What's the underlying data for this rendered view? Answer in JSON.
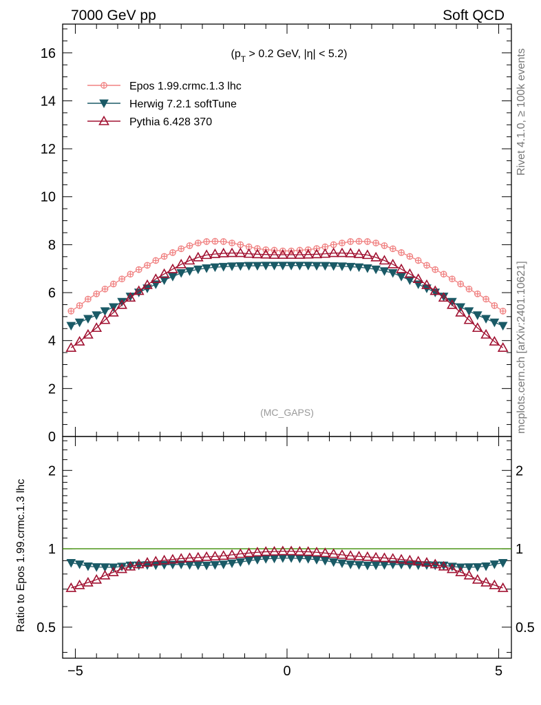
{
  "header": {
    "left_title": "7000 GeV pp",
    "right_title": "Soft QCD"
  },
  "side_labels": {
    "rivet": "Rivet 4.1.0, ≥ 100k events",
    "mcplots": "mcplots.cern.ch [arXiv:2401.10621]"
  },
  "colors": {
    "epos": "#f08080",
    "herwig": "#1a5a66",
    "pythia": "#a01030",
    "reference_line": "#3a8a00"
  },
  "chart_data": [
    {
      "type": "line",
      "panel": "main",
      "annotation": "(p_T > 0.2 GeV, |η| < 5.2)",
      "annotation_parts": [
        "(p",
        "T",
        " > 0.2 GeV, |η| < 5.2)"
      ],
      "watermark": "(MC_GAPS)",
      "xlim": [
        -5.3,
        5.3
      ],
      "ylim": [
        0,
        17.2
      ],
      "yticks": [
        0,
        2,
        4,
        6,
        8,
        10,
        12,
        14,
        16
      ],
      "legend_placement": "top-left",
      "x": [
        -5.1,
        -4.9,
        -4.7,
        -4.5,
        -4.3,
        -4.1,
        -3.9,
        -3.7,
        -3.5,
        -3.3,
        -3.1,
        -2.9,
        -2.7,
        -2.5,
        -2.3,
        -2.1,
        -1.9,
        -1.7,
        -1.5,
        -1.3,
        -1.1,
        -0.9,
        -0.7,
        -0.5,
        -0.3,
        -0.1,
        0.1,
        0.3,
        0.5,
        0.7,
        0.9,
        1.1,
        1.3,
        1.5,
        1.7,
        1.9,
        2.1,
        2.3,
        2.5,
        2.7,
        2.9,
        3.1,
        3.3,
        3.5,
        3.7,
        3.9,
        4.1,
        4.3,
        4.5,
        4.7,
        4.9,
        5.1
      ],
      "series": [
        {
          "name": "Epos 1.99.crmc.1.3 lhc",
          "key": "epos",
          "marker": "plus-circle",
          "values": [
            5.23,
            5.46,
            5.73,
            5.95,
            6.15,
            6.36,
            6.57,
            6.77,
            6.96,
            7.14,
            7.34,
            7.51,
            7.67,
            7.83,
            7.96,
            8.07,
            8.13,
            8.14,
            8.13,
            8.07,
            8.0,
            7.91,
            7.84,
            7.79,
            7.77,
            7.74,
            7.74,
            7.77,
            7.79,
            7.84,
            7.91,
            8.0,
            8.07,
            8.13,
            8.14,
            8.13,
            8.07,
            7.96,
            7.83,
            7.67,
            7.51,
            7.34,
            7.14,
            6.96,
            6.77,
            6.57,
            6.36,
            6.15,
            5.95,
            5.73,
            5.46,
            5.23
          ]
        },
        {
          "name": "Herwig 7.2.1 softTune",
          "key": "herwig",
          "marker": "triangle-down-filled",
          "values": [
            4.62,
            4.76,
            4.91,
            5.06,
            5.23,
            5.4,
            5.62,
            5.84,
            6.01,
            6.18,
            6.35,
            6.52,
            6.67,
            6.82,
            6.9,
            6.97,
            7.02,
            7.06,
            7.08,
            7.1,
            7.11,
            7.12,
            7.12,
            7.13,
            7.13,
            7.13,
            7.13,
            7.13,
            7.13,
            7.12,
            7.12,
            7.11,
            7.1,
            7.08,
            7.06,
            7.02,
            6.97,
            6.9,
            6.82,
            6.67,
            6.52,
            6.35,
            6.18,
            6.01,
            5.84,
            5.62,
            5.4,
            5.23,
            5.06,
            4.91,
            4.76,
            4.62
          ]
        },
        {
          "name": "Pythia 6.428 370",
          "key": "pythia",
          "marker": "triangle-up-open",
          "values": [
            3.7,
            3.96,
            4.25,
            4.53,
            4.86,
            5.17,
            5.49,
            5.79,
            6.07,
            6.32,
            6.57,
            6.78,
            6.98,
            7.18,
            7.34,
            7.47,
            7.57,
            7.61,
            7.64,
            7.65,
            7.65,
            7.62,
            7.6,
            7.59,
            7.58,
            7.58,
            7.58,
            7.58,
            7.59,
            7.6,
            7.62,
            7.65,
            7.65,
            7.64,
            7.61,
            7.57,
            7.47,
            7.34,
            7.18,
            6.98,
            6.78,
            6.57,
            6.32,
            6.07,
            5.79,
            5.49,
            5.17,
            4.86,
            4.53,
            4.25,
            3.96,
            3.7
          ]
        }
      ]
    },
    {
      "type": "line",
      "panel": "ratio",
      "ylabel": "Ratio to Epos 1.99.crmc.1.3 lhc",
      "yscale": "log",
      "ylim": [
        0.38,
        2.7
      ],
      "yticks": [
        0.5,
        1,
        2
      ],
      "ytick_labels": [
        "0.5",
        "1",
        "2"
      ],
      "xlim": [
        -5.3,
        5.3
      ],
      "xticks": [
        -5,
        0,
        5
      ],
      "xtick_labels": [
        "−5",
        "0",
        "5"
      ],
      "reference": 1.0,
      "series": [
        {
          "name": "Herwig 7.2.1 softTune",
          "key": "herwig",
          "marker": "triangle-down-filled",
          "values": [
            0.883,
            0.872,
            0.857,
            0.851,
            0.85,
            0.849,
            0.855,
            0.863,
            0.864,
            0.866,
            0.865,
            0.868,
            0.87,
            0.871,
            0.867,
            0.864,
            0.863,
            0.867,
            0.871,
            0.88,
            0.889,
            0.9,
            0.908,
            0.915,
            0.918,
            0.921,
            0.921,
            0.918,
            0.915,
            0.908,
            0.9,
            0.889,
            0.88,
            0.871,
            0.867,
            0.863,
            0.864,
            0.867,
            0.871,
            0.87,
            0.868,
            0.865,
            0.866,
            0.864,
            0.863,
            0.855,
            0.849,
            0.85,
            0.851,
            0.857,
            0.872,
            0.883
          ]
        },
        {
          "name": "Pythia 6.428 370",
          "key": "pythia",
          "marker": "triangle-up-open",
          "values": [
            0.707,
            0.725,
            0.742,
            0.761,
            0.79,
            0.813,
            0.836,
            0.855,
            0.872,
            0.885,
            0.895,
            0.903,
            0.91,
            0.917,
            0.922,
            0.926,
            0.931,
            0.935,
            0.94,
            0.948,
            0.956,
            0.963,
            0.969,
            0.974,
            0.976,
            0.979,
            0.979,
            0.976,
            0.974,
            0.969,
            0.963,
            0.956,
            0.948,
            0.94,
            0.935,
            0.931,
            0.926,
            0.922,
            0.917,
            0.91,
            0.903,
            0.895,
            0.885,
            0.872,
            0.855,
            0.836,
            0.813,
            0.79,
            0.761,
            0.742,
            0.725,
            0.707
          ]
        }
      ]
    }
  ]
}
